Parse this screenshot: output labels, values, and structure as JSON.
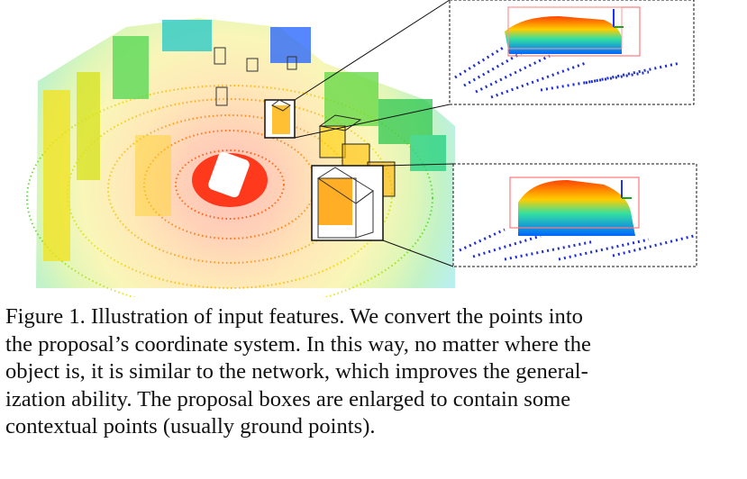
{
  "figure": {
    "description_icons": [
      "point-cloud-scene",
      "proposal-box",
      "zoom-inset"
    ],
    "colors": {
      "near": "#ff1a00",
      "mid": "#ffb000",
      "far_green": "#22dd22",
      "far_cyan": "#00d0ff",
      "far_blue": "#0033cc",
      "box_stroke": "#222222",
      "inset_box": "#ff6a6a"
    }
  },
  "caption": {
    "lines": [
      "Figure 1. Illustration of input features.  We convert the points into",
      "the proposal’s coordinate system. In this way, no matter where the",
      "object is, it is similar to the network, which improves the general-",
      "ization ability.  The proposal boxes are enlarged to contain some",
      "contextual points (usually ground points)."
    ]
  }
}
